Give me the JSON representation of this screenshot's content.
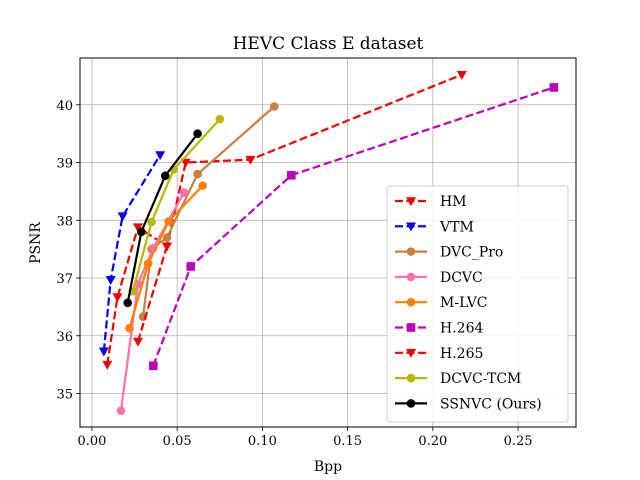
{
  "chart_data": {
    "type": "line",
    "title": "HEVC Class E dataset",
    "xlabel": "Bpp",
    "ylabel": "PSNR",
    "xlim": [
      -0.007,
      0.284
    ],
    "ylim": [
      34.42,
      40.81
    ],
    "xticks": [
      {
        "value": 0.0,
        "label": "0.00"
      },
      {
        "value": 0.05,
        "label": "0.05"
      },
      {
        "value": 0.1,
        "label": "0.10"
      },
      {
        "value": 0.15,
        "label": "0.15"
      },
      {
        "value": 0.2,
        "label": "0.20"
      },
      {
        "value": 0.25,
        "label": "0.25"
      }
    ],
    "yticks": [
      {
        "value": 35,
        "label": "35"
      },
      {
        "value": 36,
        "label": "36"
      },
      {
        "value": 37,
        "label": "37"
      },
      {
        "value": 38,
        "label": "38"
      },
      {
        "value": 39,
        "label": "39"
      },
      {
        "value": 40,
        "label": "40"
      }
    ],
    "grid": true,
    "legend_position": "lower-right",
    "series": [
      {
        "name": "HM",
        "color": "#ee0000",
        "dash": "dashed",
        "marker": "triangle-down",
        "x": [
          0.009,
          0.015,
          0.027,
          0.044,
          0.055,
          0.093,
          0.217
        ],
        "y": [
          35.5,
          36.67,
          37.88,
          37.55,
          39.0,
          39.05,
          40.52
        ]
      },
      {
        "name": "VTM",
        "color": "#0000ee",
        "dash": "dashed",
        "marker": "triangle-down",
        "x": [
          0.007,
          0.011,
          0.018,
          0.04
        ],
        "y": [
          35.73,
          36.97,
          38.07,
          39.13
        ]
      },
      {
        "name": "DVC_Pro",
        "color": "#c88040",
        "dash": "solid",
        "marker": "circle",
        "x": [
          0.03,
          0.035,
          0.044,
          0.062,
          0.107
        ],
        "y": [
          36.33,
          37.5,
          37.7,
          38.8,
          39.97
        ]
      },
      {
        "name": "DCVC",
        "color": "#ff70b0",
        "dash": "solid",
        "marker": "circle",
        "x": [
          0.017,
          0.027,
          0.036,
          0.054
        ],
        "y": [
          34.7,
          36.9,
          37.52,
          38.48
        ]
      },
      {
        "name": "M-LVC",
        "color": "#ff8000",
        "dash": "solid",
        "marker": "circle",
        "x": [
          0.022,
          0.033,
          0.045,
          0.065
        ],
        "y": [
          36.13,
          37.25,
          37.98,
          38.6
        ]
      },
      {
        "name": "H.264",
        "color": "#bb00bb",
        "dash": "dashed",
        "marker": "square",
        "x": [
          0.036,
          0.058,
          0.117,
          0.271
        ],
        "y": [
          35.48,
          37.2,
          38.78,
          40.3
        ]
      },
      {
        "name": "H.265",
        "color": "#ee0000",
        "dash": "dashed",
        "marker": "triangle-down",
        "x": [
          0.027,
          0.044
        ],
        "y": [
          35.9,
          37.55
        ]
      },
      {
        "name": "DCVC-TCM",
        "color": "#b8b800",
        "dash": "solid",
        "marker": "circle",
        "x": [
          0.024,
          0.035,
          0.048,
          0.075
        ],
        "y": [
          36.77,
          37.97,
          38.88,
          39.75
        ]
      },
      {
        "name": "SSNVC (Ours)",
        "color": "#000000",
        "dash": "solid",
        "marker": "circle",
        "x": [
          0.021,
          0.029,
          0.043,
          0.062
        ],
        "y": [
          36.57,
          37.8,
          38.77,
          39.5
        ]
      }
    ]
  }
}
